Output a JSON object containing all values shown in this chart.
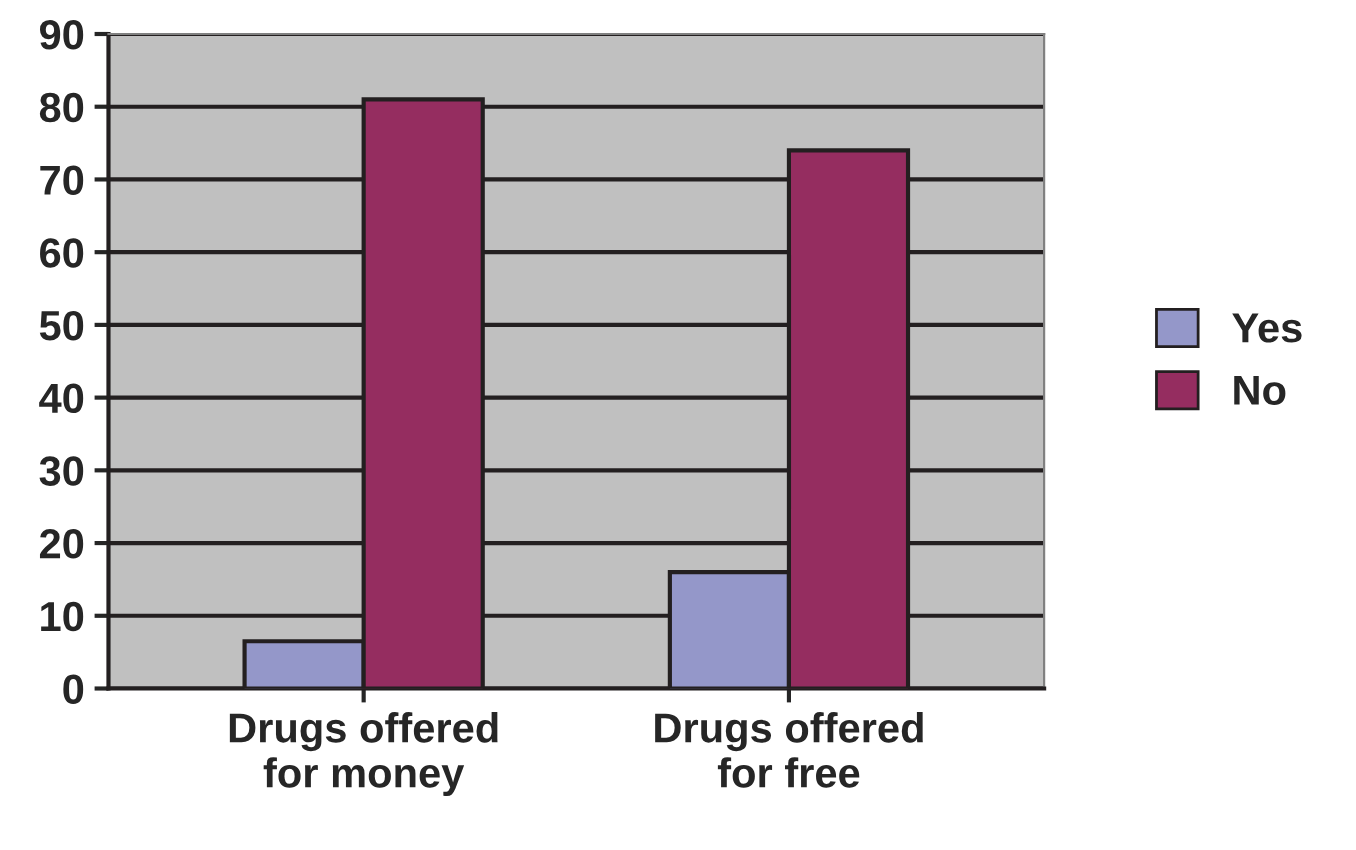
{
  "chart_data": {
    "type": "bar",
    "categories": [
      "Drugs offered\nfor money",
      "Drugs offered\nfor free"
    ],
    "series": [
      {
        "name": "Yes",
        "color": "#9497c9",
        "values": [
          6.5,
          16
        ]
      },
      {
        "name": "No",
        "color": "#952d60",
        "values": [
          81,
          74
        ]
      }
    ],
    "ylim": [
      0,
      90
    ],
    "yticks": [
      0,
      10,
      20,
      30,
      40,
      50,
      60,
      70,
      80,
      90
    ],
    "grid": "y",
    "legend": "right"
  }
}
